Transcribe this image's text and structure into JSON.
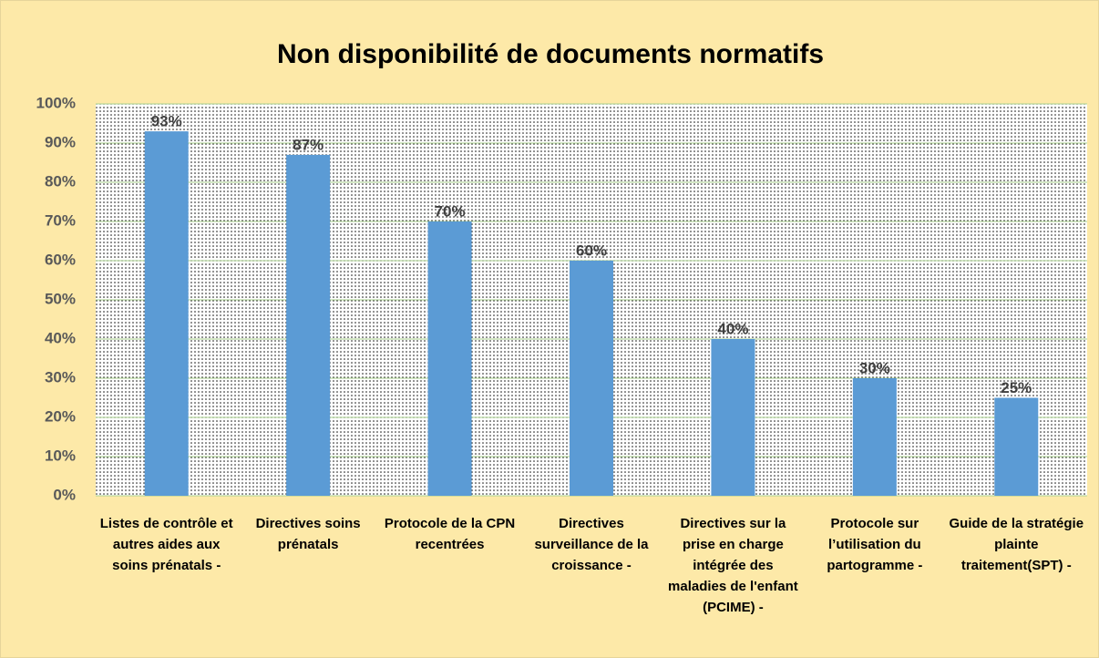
{
  "chart_data": {
    "type": "bar",
    "title": "Non disponibilité de documents normatifs",
    "categories": [
      "Listes de contrôle et autres aides aux soins prénatals -",
      "Directives soins prénatals",
      "Protocole de la CPN recentrées",
      "Directives surveillance de la croissance -",
      "Directives sur la prise en charge intégrée des maladies de l'enfant (PCIME) -",
      "Protocole sur l’utilisation du partogramme -",
      "Guide de la stratégie plainte traitement(SPT) -"
    ],
    "values": [
      93,
      87,
      70,
      60,
      40,
      30,
      25
    ],
    "value_labels": [
      "93%",
      "87%",
      "70%",
      "60%",
      "40%",
      "30%",
      "25%"
    ],
    "color": "#5b9bd5",
    "ylim": [
      0,
      100
    ],
    "yticks": [
      {
        "value": 0,
        "label": "0%"
      },
      {
        "value": 10,
        "label": "10%"
      },
      {
        "value": 20,
        "label": "20%"
      },
      {
        "value": 30,
        "label": "30%"
      },
      {
        "value": 40,
        "label": "40%"
      },
      {
        "value": 50,
        "label": "50%"
      },
      {
        "value": 60,
        "label": "60%"
      },
      {
        "value": 70,
        "label": "70%"
      },
      {
        "value": 80,
        "label": "80%"
      },
      {
        "value": 90,
        "label": "90%"
      },
      {
        "value": 100,
        "label": "100%"
      }
    ],
    "grid": true
  }
}
